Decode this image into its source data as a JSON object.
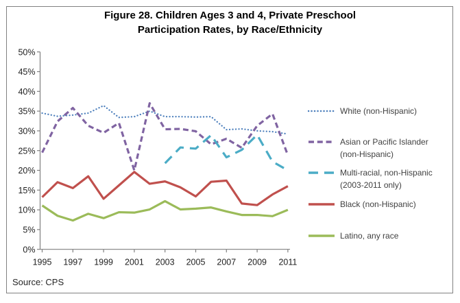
{
  "figure": {
    "title_line1": "Figure 28. Children Ages 3 and 4, Private Preschool",
    "title_line2": "Participation Rates, by Race/Ethnicity",
    "source": "Source: CPS"
  },
  "chart_data": {
    "type": "line",
    "title": "Figure 28. Children Ages 3 and 4, Private Preschool Participation Rates, by Race/Ethnicity",
    "xlabel": "",
    "ylabel": "",
    "ylim": [
      0,
      50
    ],
    "y_tick_step": 5,
    "y_tick_suffix": "%",
    "grid": false,
    "legend_position": "right",
    "x": [
      1995,
      1996,
      1997,
      1998,
      1999,
      2000,
      2001,
      2002,
      2003,
      2004,
      2005,
      2006,
      2007,
      2008,
      2009,
      2010,
      2011
    ],
    "x_tick_labels": [
      "1995",
      "1997",
      "1999",
      "2001",
      "2003",
      "2005",
      "2007",
      "2009",
      "2011"
    ],
    "series": [
      {
        "name": "White (non-Hispanic)",
        "legend_lines": [
          "White (non-Hispanic)"
        ],
        "color": "#4F81BD",
        "line_style": "dotted",
        "values": [
          34.5,
          33.7,
          34.0,
          34.5,
          36.4,
          33.4,
          33.6,
          35.0,
          33.6,
          33.6,
          33.5,
          33.6,
          30.3,
          30.5,
          30.0,
          29.8,
          29.2
        ]
      },
      {
        "name": "Asian or Pacific Islander (non-Hispanic)",
        "legend_lines": [
          "Asian or Pacific Islander",
          "(non-Hispanic)"
        ],
        "color": "#8064A2",
        "line_style": "dashed",
        "values": [
          24.5,
          32.4,
          35.8,
          31.3,
          29.5,
          32.0,
          20.0,
          37.0,
          30.4,
          30.5,
          29.9,
          26.6,
          28.0,
          25.7,
          31.3,
          34.3,
          23.8
        ]
      },
      {
        "name": "Multi-racial, non-Hispanic (2003-2011 only)",
        "legend_lines": [
          "Multi-racial, non-Hispanic",
          "(2003-2011 only)"
        ],
        "color": "#4BACC6",
        "line_style": "long-dash",
        "values": [
          null,
          null,
          null,
          null,
          null,
          null,
          null,
          null,
          21.8,
          25.8,
          25.5,
          28.9,
          23.3,
          25.2,
          29.0,
          22.2,
          20.0
        ]
      },
      {
        "name": "Black (non-Hispanic)",
        "legend_lines": [
          "Black (non-Hispanic)"
        ],
        "color": "#C0504D",
        "line_style": "solid",
        "values": [
          13.2,
          17.0,
          15.5,
          18.5,
          12.8,
          16.2,
          19.6,
          16.6,
          17.2,
          15.7,
          13.4,
          17.1,
          17.4,
          11.6,
          11.2,
          13.9,
          16.0
        ]
      },
      {
        "name": "Latino, any race",
        "legend_lines": [
          "Latino, any race"
        ],
        "color": "#9BBB59",
        "line_style": "solid",
        "values": [
          11.1,
          8.5,
          7.3,
          9.0,
          7.9,
          9.4,
          9.3,
          10.1,
          12.2,
          10.1,
          10.3,
          10.6,
          9.6,
          8.7,
          8.7,
          8.4,
          10.0
        ]
      }
    ],
    "colors": {
      "axis": "#808080",
      "tick_text": "#1F1F1F",
      "legend_text": "#404040",
      "border": "#808080"
    }
  }
}
